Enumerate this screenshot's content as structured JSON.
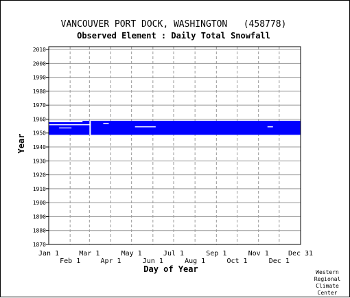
{
  "chart_data": {
    "type": "heatmap",
    "title": "VANCOUVER PORT DOCK, WASHINGTON   (458778)",
    "subtitle": "Observed Element : Daily Total Snowfall",
    "xlabel": "Day of Year",
    "ylabel": "Year",
    "ylim": [
      1870,
      2012
    ],
    "yticks": [
      2010,
      2000,
      1990,
      1980,
      1970,
      1960,
      1950,
      1940,
      1930,
      1920,
      1910,
      1900,
      1890,
      1880,
      1870
    ],
    "xlim": [
      1,
      366
    ],
    "xticks_top_row": [
      {
        "label": "Jan 1",
        "day": 1
      },
      {
        "label": "Mar 1",
        "day": 60
      },
      {
        "label": "May 1",
        "day": 121
      },
      {
        "label": "Jul 1",
        "day": 182
      },
      {
        "label": "Sep 1",
        "day": 244
      },
      {
        "label": "Nov 1",
        "day": 305
      },
      {
        "label": "Dec 31",
        "day": 366
      }
    ],
    "xticks_bottom_row": [
      {
        "label": "Feb 1",
        "day": 32
      },
      {
        "label": "Apr 1",
        "day": 91
      },
      {
        "label": "Jun 1",
        "day": 152
      },
      {
        "label": "Aug 1",
        "day": 213
      },
      {
        "label": "Oct 1",
        "day": 274
      },
      {
        "label": "Dec 1",
        "day": 335
      }
    ],
    "grid": true,
    "data_color": "#0000ff",
    "missing_color": "#ffffff",
    "coverage_blocks": [
      {
        "day_start": 1,
        "day_end": 366,
        "year_start": 1948.7,
        "year_end": 1958.8
      }
    ],
    "gaps": [
      {
        "day_start": 1,
        "day_end": 50,
        "year_start": 1957.8,
        "year_end": 1958.8
      },
      {
        "day_start": 1,
        "day_end": 62,
        "year_start": 1955.6,
        "year_end": 1956.3
      },
      {
        "day_start": 16,
        "day_end": 34,
        "year_start": 1953.4,
        "year_end": 1954.0
      },
      {
        "day_start": 60,
        "day_end": 62,
        "year_start": 1948.7,
        "year_end": 1958.8
      },
      {
        "day_start": 80,
        "day_end": 88,
        "year_start": 1956.6,
        "year_end": 1957.3
      },
      {
        "day_start": 126,
        "day_end": 156,
        "year_start": 1954.1,
        "year_end": 1954.8
      },
      {
        "day_start": 318,
        "day_end": 326,
        "year_start": 1954.1,
        "year_end": 1954.8
      }
    ]
  },
  "credit": [
    "Western",
    "Regional",
    "Climate",
    "Center"
  ]
}
